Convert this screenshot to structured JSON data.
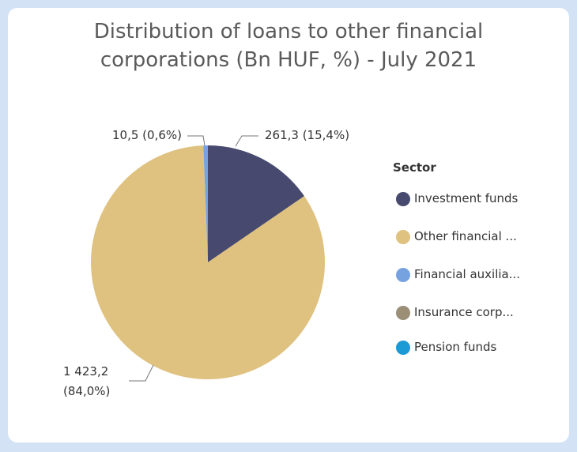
{
  "chart_data": {
    "type": "pie",
    "title": "Distribution of loans to other financial corporations (Bn HUF, %) - July 2021",
    "legend_title": "Sector",
    "categories": [
      "Investment funds",
      "Other financial ...",
      "Financial auxilia...",
      "Insurance corp...",
      "Pension funds"
    ],
    "values": [
      261.3,
      1423.2,
      10.5,
      0,
      0
    ],
    "value_labels": [
      "261,3 (15,4%)",
      "1 423,2 (84,0%)",
      "10,5 (0,6%)",
      null,
      null
    ],
    "colors": [
      "#474a6e",
      "#dfc280",
      "#76a3e0",
      "#9b8f78",
      "#1b9ad6"
    ],
    "legend": "right"
  }
}
